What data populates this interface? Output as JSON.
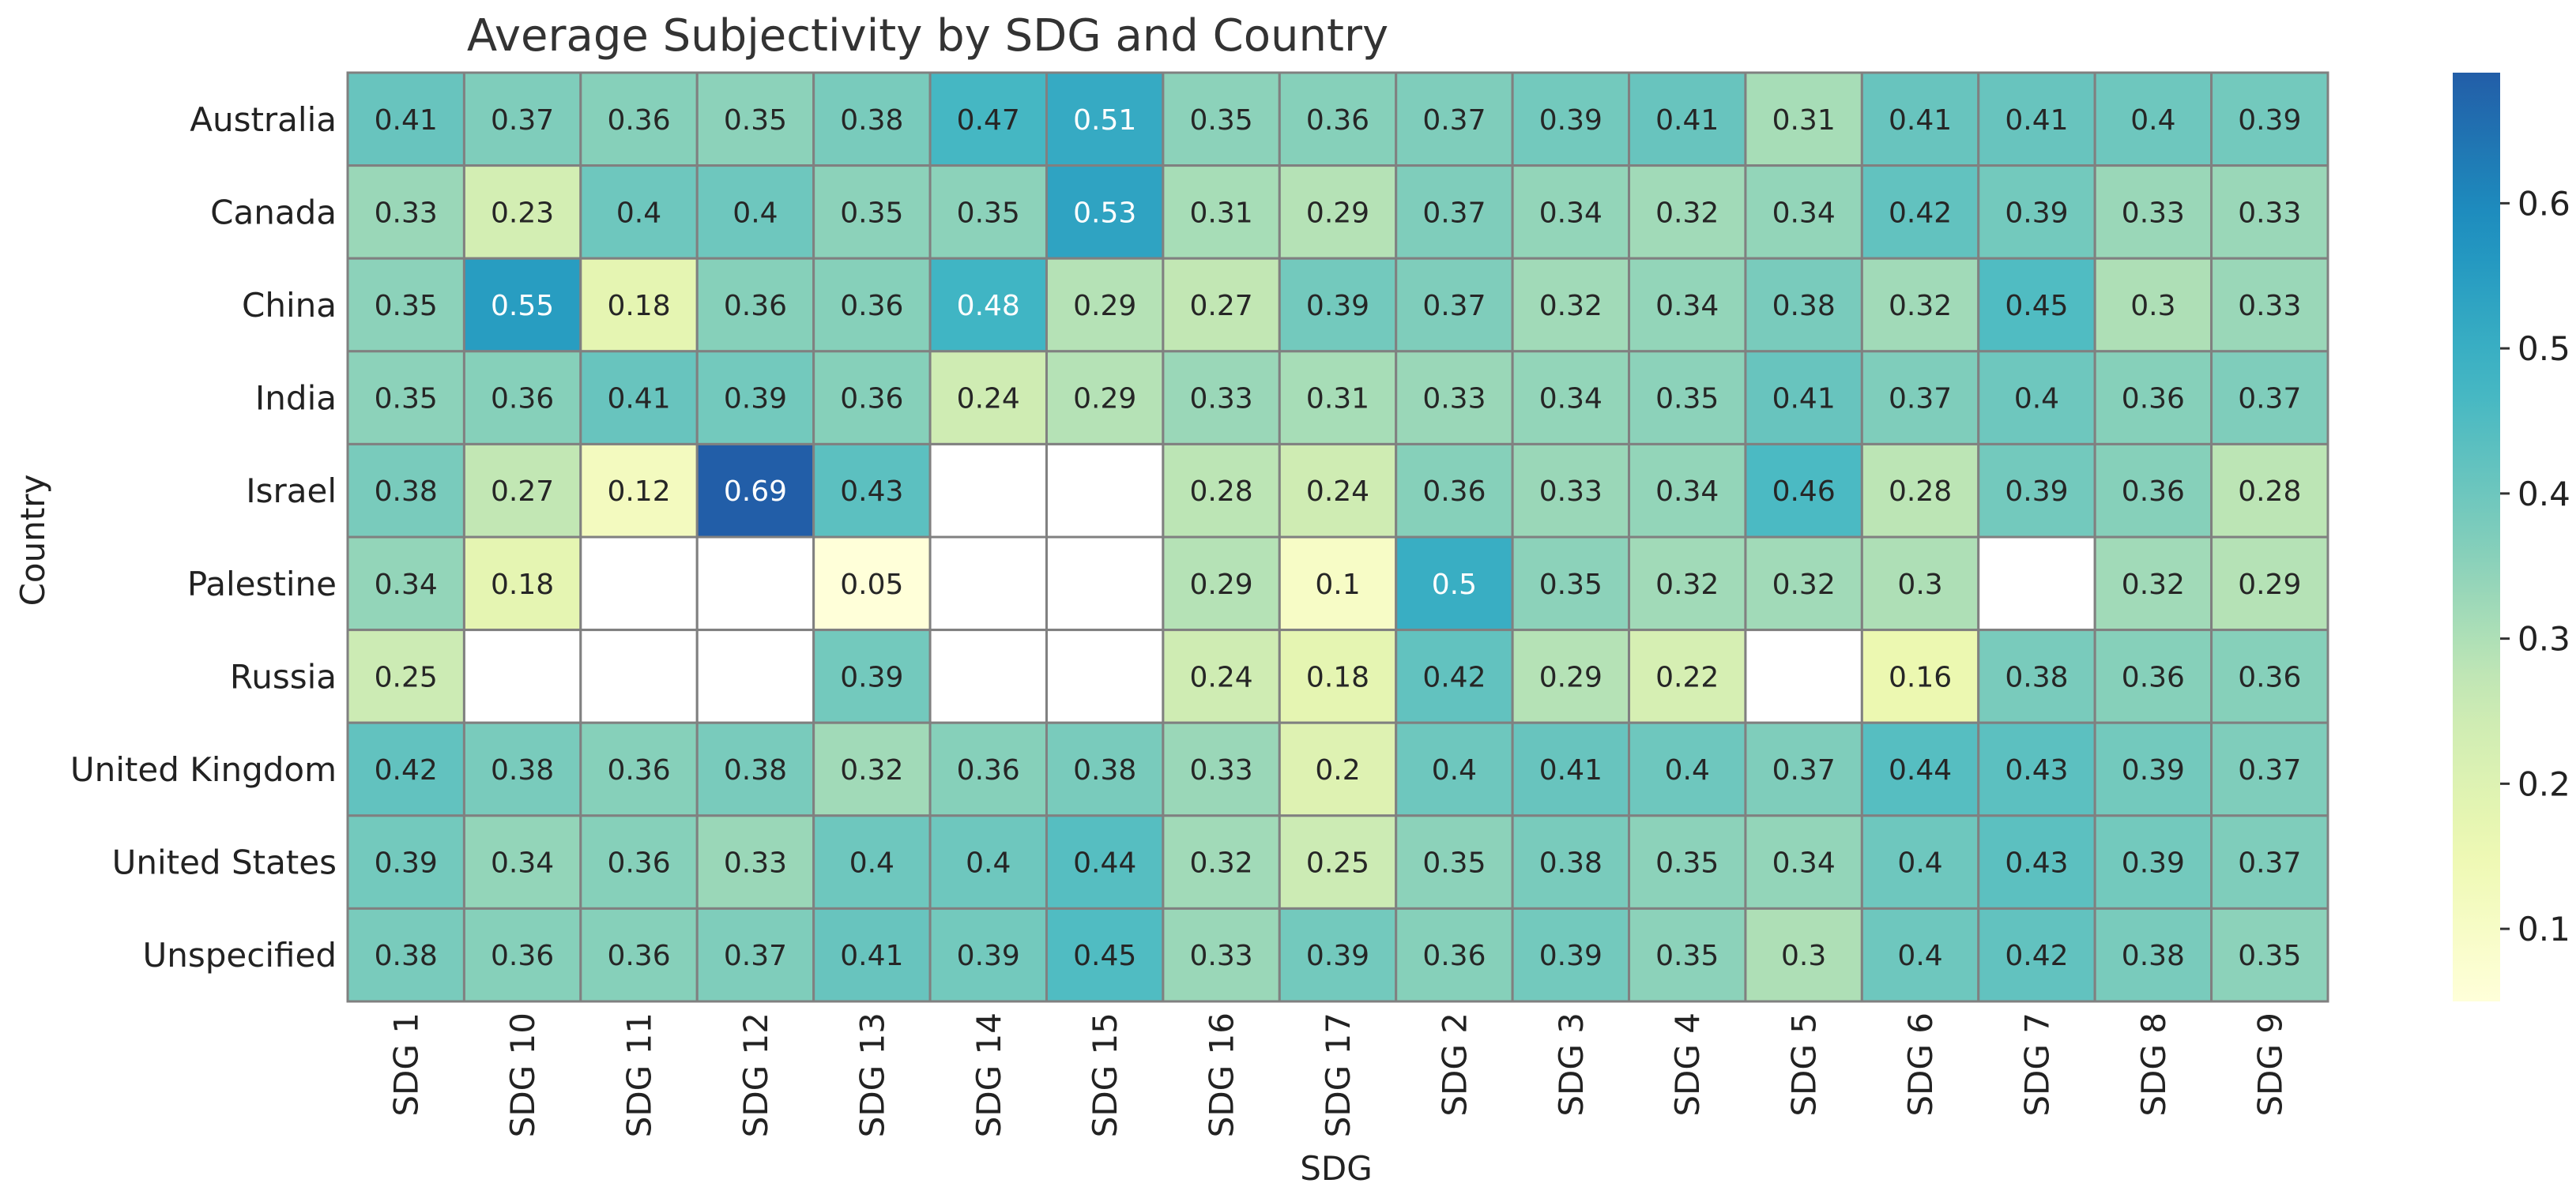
{
  "chart_data": {
    "type": "heatmap",
    "title": "Average Subjectivity by SDG and Country",
    "xlabel": "SDG",
    "ylabel": "Country",
    "x_categories": [
      "SDG 1",
      "SDG 10",
      "SDG 11",
      "SDG 12",
      "SDG 13",
      "SDG 14",
      "SDG 15",
      "SDG 16",
      "SDG 17",
      "SDG 2",
      "SDG 3",
      "SDG 4",
      "SDG 5",
      "SDG 6",
      "SDG 7",
      "SDG 8",
      "SDG 9"
    ],
    "y_categories": [
      "Australia",
      "Canada",
      "China",
      "India",
      "Israel",
      "Palestine",
      "Russia",
      "United Kingdom",
      "United States",
      "Unspecified"
    ],
    "values": [
      [
        0.41,
        0.37,
        0.36,
        0.35,
        0.38,
        0.47,
        0.51,
        0.35,
        0.36,
        0.37,
        0.39,
        0.41,
        0.31,
        0.41,
        0.41,
        0.4,
        0.39
      ],
      [
        0.33,
        0.23,
        0.4,
        0.4,
        0.35,
        0.35,
        0.53,
        0.31,
        0.29,
        0.37,
        0.34,
        0.32,
        0.34,
        0.42,
        0.39,
        0.33,
        0.33
      ],
      [
        0.35,
        0.55,
        0.18,
        0.36,
        0.36,
        0.48,
        0.29,
        0.27,
        0.39,
        0.37,
        0.32,
        0.34,
        0.38,
        0.32,
        0.45,
        0.3,
        0.33
      ],
      [
        0.35,
        0.36,
        0.41,
        0.39,
        0.36,
        0.24,
        0.29,
        0.33,
        0.31,
        0.33,
        0.34,
        0.35,
        0.41,
        0.37,
        0.4,
        0.36,
        0.37
      ],
      [
        0.38,
        0.27,
        0.12,
        0.69,
        0.43,
        null,
        null,
        0.28,
        0.24,
        0.36,
        0.33,
        0.34,
        0.46,
        0.28,
        0.39,
        0.36,
        0.28
      ],
      [
        0.34,
        0.18,
        null,
        null,
        0.05,
        null,
        null,
        0.29,
        0.1,
        0.5,
        0.35,
        0.32,
        0.32,
        0.3,
        null,
        0.32,
        0.29
      ],
      [
        0.25,
        null,
        null,
        null,
        0.39,
        null,
        null,
        0.24,
        0.18,
        0.42,
        0.29,
        0.22,
        null,
        0.16,
        0.38,
        0.36,
        0.36
      ],
      [
        0.42,
        0.38,
        0.36,
        0.38,
        0.32,
        0.36,
        0.38,
        0.33,
        0.2,
        0.4,
        0.41,
        0.4,
        0.37,
        0.44,
        0.43,
        0.39,
        0.37
      ],
      [
        0.39,
        0.34,
        0.36,
        0.33,
        0.4,
        0.4,
        0.44,
        0.32,
        0.25,
        0.35,
        0.38,
        0.35,
        0.34,
        0.4,
        0.43,
        0.39,
        0.37
      ],
      [
        0.38,
        0.36,
        0.36,
        0.37,
        0.41,
        0.39,
        0.45,
        0.33,
        0.39,
        0.36,
        0.39,
        0.35,
        0.3,
        0.4,
        0.42,
        0.38,
        0.35
      ]
    ],
    "colormap": "YlGnBu",
    "color_range": [
      0.05,
      0.69
    ],
    "colorbar_ticks": [
      0.1,
      0.2,
      0.3,
      0.4,
      0.5,
      0.6
    ],
    "cell_border_color": "#808080",
    "grid": false,
    "legend": "colorbar-right"
  }
}
